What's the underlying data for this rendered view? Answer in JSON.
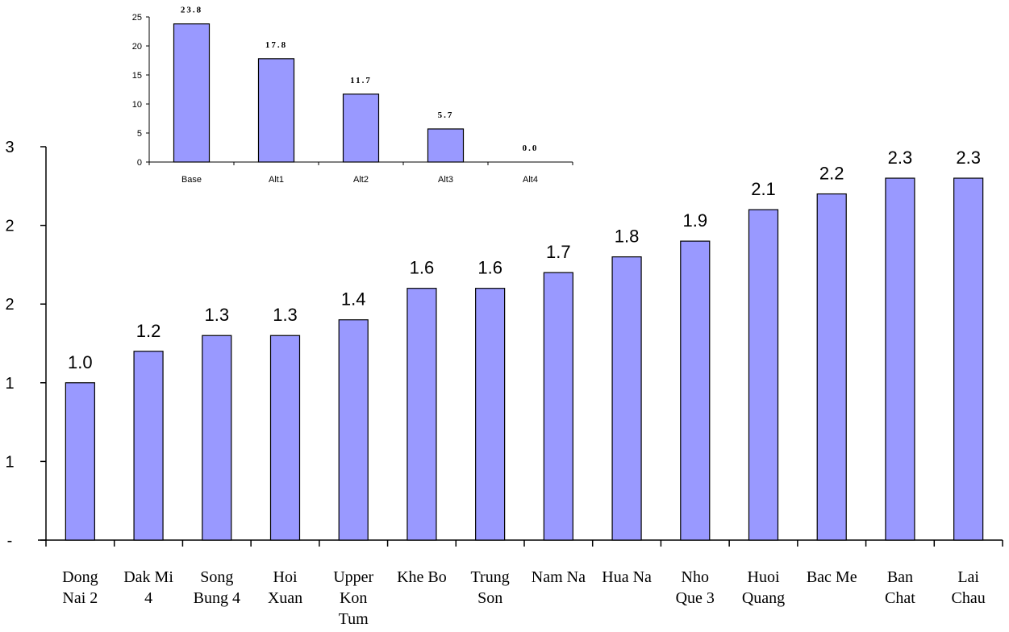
{
  "chart_data": [
    {
      "type": "bar",
      "categories": [
        [
          "Dong",
          "Nai 2"
        ],
        [
          "Dak Mi",
          "4"
        ],
        [
          "Song",
          "Bung 4"
        ],
        [
          "Hoi",
          "Xuan"
        ],
        [
          "Upper",
          "Kon",
          "Tum"
        ],
        [
          "Khe Bo"
        ],
        [
          "Trung",
          "Son"
        ],
        [
          "Nam Na"
        ],
        [
          "Hua Na"
        ],
        [
          "Nho",
          "Que 3"
        ],
        [
          "Huoi",
          "Quang"
        ],
        [
          "Bac Me"
        ],
        [
          "Ban",
          "Chat"
        ],
        [
          "Lai",
          "Chau"
        ]
      ],
      "values": [
        1.0,
        1.2,
        1.3,
        1.3,
        1.4,
        1.6,
        1.6,
        1.7,
        1.8,
        1.9,
        2.1,
        2.2,
        2.3,
        2.3
      ],
      "data_labels": [
        "1.0",
        "1.2",
        "1.3",
        "1.3",
        "1.4",
        "1.6",
        "1.6",
        "1.7",
        "1.8",
        "1.9",
        "2.1",
        "2.2",
        "2.3",
        "2.3"
      ],
      "ylim": [
        0,
        2.5
      ],
      "y_ticks": [
        0,
        0.5,
        1.0,
        1.5,
        2.0,
        2.5
      ],
      "y_tick_labels": [
        "-",
        "1",
        "1",
        "2",
        "2",
        "3"
      ],
      "bar_color": "#9999ff",
      "title": "",
      "xlabel": "",
      "ylabel": ""
    },
    {
      "type": "bar",
      "categories": [
        "Base",
        "Alt1",
        "Alt2",
        "Alt3",
        "Alt4"
      ],
      "values": [
        23.8,
        17.8,
        11.7,
        5.7,
        0.0
      ],
      "data_labels": [
        "23.8",
        "17.8",
        "11.7",
        "5.7",
        "0.0"
      ],
      "ylim": [
        0,
        25
      ],
      "y_ticks": [
        0,
        5,
        10,
        15,
        20,
        25
      ],
      "y_tick_labels": [
        "0",
        "5",
        "10",
        "15",
        "20",
        "25"
      ],
      "bar_color": "#9999ff",
      "title": "",
      "xlabel": "",
      "ylabel": ""
    }
  ]
}
